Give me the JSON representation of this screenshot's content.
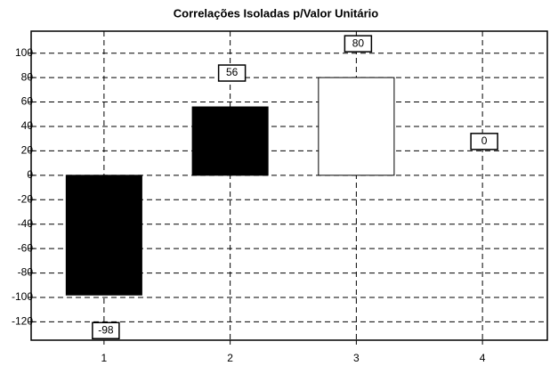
{
  "chart_data": {
    "type": "bar",
    "title": "Correlações Isoladas p/Valor Unitário",
    "categories": [
      "1",
      "2",
      "3",
      "4"
    ],
    "values": [
      -98,
      56,
      80,
      0
    ],
    "colors": [
      "#000000",
      "#000000",
      "#ffffff",
      "#ffffff"
    ],
    "ylim": [
      -135,
      118
    ],
    "yticks": [
      -120,
      -100,
      -80,
      -60,
      -40,
      -20,
      0,
      20,
      40,
      60,
      80,
      100
    ],
    "grid": true
  }
}
